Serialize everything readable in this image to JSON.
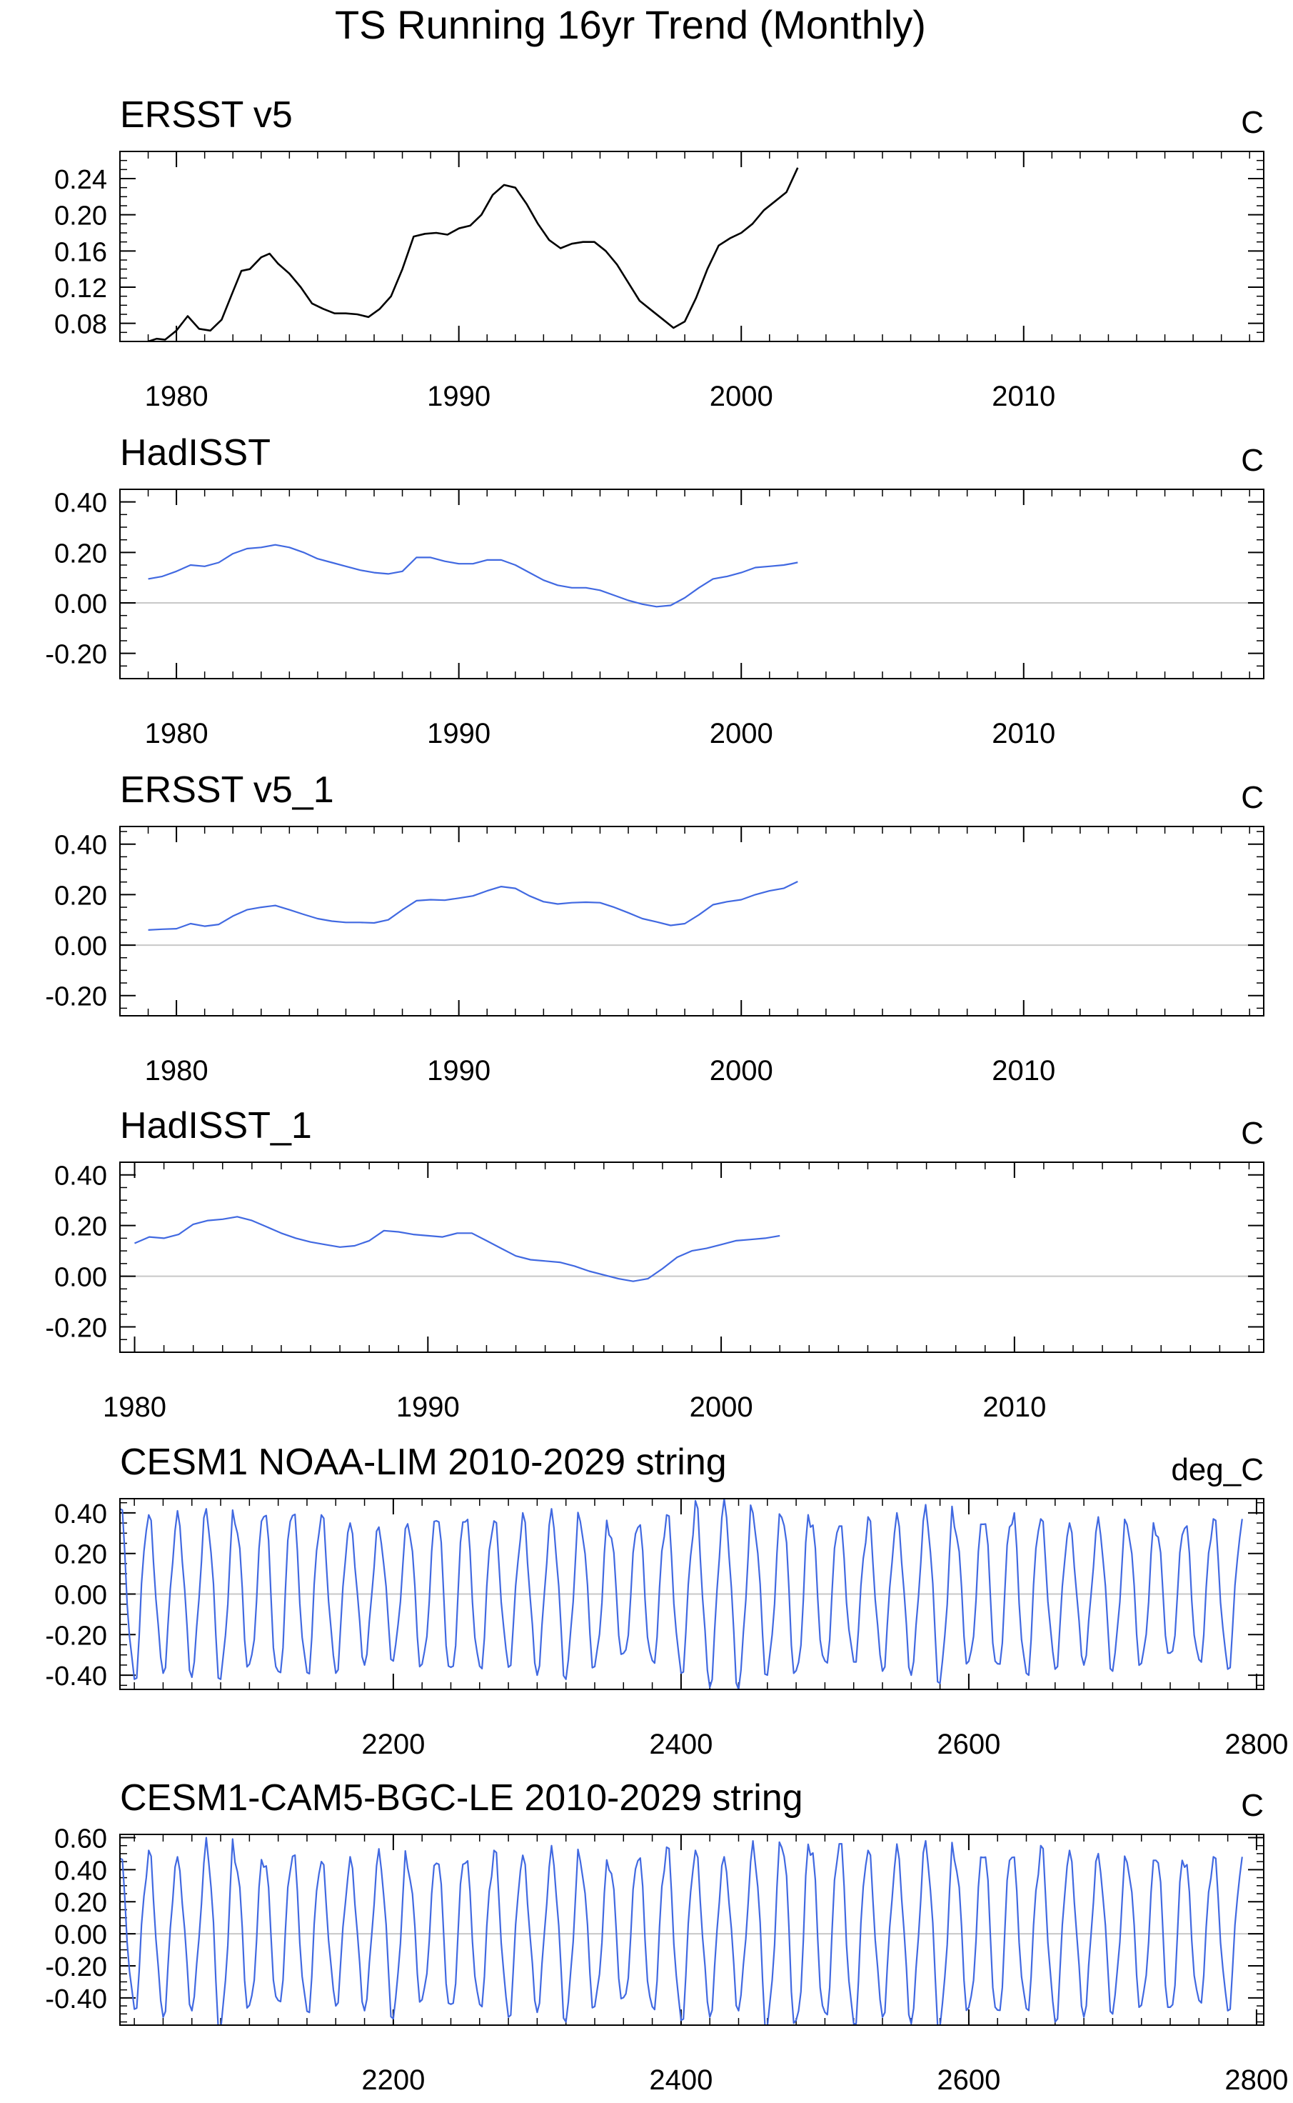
{
  "figure": {
    "title": "TS Running 16yr Trend (Monthly)"
  },
  "colors": {
    "primary_line": "#000000",
    "series_line": "#4169e1",
    "zero_line": "#c8c8c8",
    "frame": "#000000"
  },
  "chart_data": [
    {
      "type": "line",
      "title": "ERSST v5",
      "units": "C",
      "xlim": [
        1978.0,
        2018.5
      ],
      "ylim": [
        0.06,
        0.27
      ],
      "xticks": [
        1980,
        1990,
        2000,
        2010
      ],
      "yticks": [
        0.08,
        0.12,
        0.16,
        0.2,
        0.24
      ],
      "ytick_labels": [
        "0.08",
        "0.12",
        "0.16",
        "0.20",
        "0.24"
      ],
      "zero_line": false,
      "color": "black",
      "series": [
        {
          "x": [
            1979.0,
            1979.3,
            1979.6,
            1980.0,
            1980.4,
            1980.8,
            1981.2,
            1981.6,
            1982.0,
            1982.3,
            1982.6,
            1983.0,
            1983.3,
            1983.6,
            1984.0,
            1984.4,
            1984.8,
            1985.2,
            1985.6,
            1986.0,
            1986.4,
            1986.8,
            1987.2,
            1987.6,
            1988.0,
            1988.4,
            1988.8,
            1989.2,
            1989.6,
            1990.0,
            1990.4,
            1990.8,
            1991.2,
            1991.6,
            1992.0,
            1992.4,
            1992.8,
            1993.2,
            1993.6,
            1994.0,
            1994.4,
            1994.8,
            1995.2,
            1995.6,
            1996.0,
            1996.4,
            1996.8,
            1997.2,
            1997.6,
            1998.0,
            1998.4,
            1998.8,
            1999.2,
            1999.6,
            2000.0,
            2000.4,
            2000.8,
            2001.2,
            2001.6,
            2002.0
          ],
          "y": [
            0.06,
            0.063,
            0.062,
            0.072,
            0.088,
            0.074,
            0.072,
            0.084,
            0.115,
            0.138,
            0.14,
            0.153,
            0.157,
            0.146,
            0.135,
            0.12,
            0.102,
            0.096,
            0.091,
            0.091,
            0.09,
            0.087,
            0.096,
            0.11,
            0.14,
            0.176,
            0.179,
            0.18,
            0.178,
            0.185,
            0.188,
            0.2,
            0.222,
            0.233,
            0.23,
            0.212,
            0.19,
            0.172,
            0.163,
            0.168,
            0.17,
            0.17,
            0.16,
            0.145,
            0.125,
            0.105,
            0.095,
            0.085,
            0.075,
            0.082,
            0.108,
            0.14,
            0.166,
            0.174,
            0.18,
            0.19,
            0.205,
            0.215,
            0.225,
            0.252
          ]
        }
      ]
    },
    {
      "type": "line",
      "title": "HadISST",
      "units": "C",
      "xlim": [
        1978.0,
        2018.5
      ],
      "ylim": [
        -0.3,
        0.45
      ],
      "xticks": [
        1980,
        1990,
        2000,
        2010
      ],
      "yticks": [
        -0.2,
        0.0,
        0.2,
        0.4
      ],
      "ytick_labels": [
        "-0.20",
        "0.00",
        "0.20",
        "0.40"
      ],
      "zero_line": true,
      "color": "blue",
      "series": [
        {
          "x": [
            1979.0,
            1979.5,
            1980.0,
            1980.5,
            1981.0,
            1981.5,
            1982.0,
            1982.5,
            1983.0,
            1983.5,
            1984.0,
            1984.5,
            1985.0,
            1985.5,
            1986.0,
            1986.5,
            1987.0,
            1987.5,
            1988.0,
            1988.5,
            1989.0,
            1989.5,
            1990.0,
            1990.5,
            1991.0,
            1991.5,
            1992.0,
            1992.5,
            1993.0,
            1993.5,
            1994.0,
            1994.5,
            1995.0,
            1995.5,
            1996.0,
            1996.5,
            1997.0,
            1997.5,
            1998.0,
            1998.5,
            1999.0,
            1999.5,
            2000.0,
            2000.5,
            2001.0,
            2001.5,
            2002.0
          ],
          "y": [
            0.095,
            0.105,
            0.125,
            0.15,
            0.145,
            0.16,
            0.195,
            0.215,
            0.22,
            0.23,
            0.22,
            0.2,
            0.175,
            0.16,
            0.145,
            0.13,
            0.12,
            0.115,
            0.125,
            0.18,
            0.18,
            0.165,
            0.155,
            0.155,
            0.17,
            0.17,
            0.15,
            0.12,
            0.09,
            0.07,
            0.06,
            0.06,
            0.05,
            0.03,
            0.01,
            -0.005,
            -0.015,
            -0.01,
            0.02,
            0.06,
            0.095,
            0.105,
            0.12,
            0.14,
            0.145,
            0.15,
            0.16
          ]
        }
      ]
    },
    {
      "type": "line",
      "title": "ERSST v5_1",
      "units": "C",
      "xlim": [
        1978.0,
        2018.5
      ],
      "ylim": [
        -0.28,
        0.47
      ],
      "xticks": [
        1980,
        1990,
        2000,
        2010
      ],
      "yticks": [
        -0.2,
        0.0,
        0.2,
        0.4
      ],
      "ytick_labels": [
        "-0.20",
        "0.00",
        "0.20",
        "0.40"
      ],
      "zero_line": true,
      "color": "blue",
      "series": [
        {
          "x": [
            1979.0,
            1979.5,
            1980.0,
            1980.5,
            1981.0,
            1981.5,
            1982.0,
            1982.5,
            1983.0,
            1983.5,
            1984.0,
            1984.5,
            1985.0,
            1985.5,
            1986.0,
            1986.5,
            1987.0,
            1987.5,
            1988.0,
            1988.5,
            1989.0,
            1989.5,
            1990.0,
            1990.5,
            1991.0,
            1991.5,
            1992.0,
            1992.5,
            1993.0,
            1993.5,
            1994.0,
            1994.5,
            1995.0,
            1995.5,
            1996.0,
            1996.5,
            1997.0,
            1997.5,
            1998.0,
            1998.5,
            1999.0,
            1999.5,
            2000.0,
            2000.5,
            2001.0,
            2001.5,
            2002.0
          ],
          "y": [
            0.06,
            0.063,
            0.065,
            0.085,
            0.075,
            0.082,
            0.115,
            0.14,
            0.15,
            0.157,
            0.14,
            0.122,
            0.105,
            0.095,
            0.09,
            0.09,
            0.088,
            0.1,
            0.14,
            0.176,
            0.18,
            0.178,
            0.186,
            0.195,
            0.215,
            0.232,
            0.225,
            0.195,
            0.172,
            0.163,
            0.168,
            0.17,
            0.168,
            0.15,
            0.128,
            0.105,
            0.092,
            0.078,
            0.085,
            0.12,
            0.16,
            0.172,
            0.18,
            0.2,
            0.215,
            0.225,
            0.252
          ]
        }
      ]
    },
    {
      "type": "line",
      "title": "HadISST_1",
      "units": "C",
      "xlim": [
        1979.5,
        2018.5
      ],
      "ylim": [
        -0.3,
        0.45
      ],
      "xticks": [
        1980,
        1990,
        2000,
        2010
      ],
      "yticks": [
        -0.2,
        0.0,
        0.2,
        0.4
      ],
      "ytick_labels": [
        "-0.20",
        "0.00",
        "0.20",
        "0.40"
      ],
      "zero_line": true,
      "color": "blue",
      "series": [
        {
          "x": [
            1980.0,
            1980.5,
            1981.0,
            1981.5,
            1982.0,
            1982.5,
            1983.0,
            1983.5,
            1984.0,
            1984.5,
            1985.0,
            1985.5,
            1986.0,
            1986.5,
            1987.0,
            1987.5,
            1988.0,
            1988.5,
            1989.0,
            1989.5,
            1990.0,
            1990.5,
            1991.0,
            1991.5,
            1992.0,
            1992.5,
            1993.0,
            1993.5,
            1994.0,
            1994.5,
            1995.0,
            1995.5,
            1996.0,
            1996.5,
            1997.0,
            1997.5,
            1998.0,
            1998.5,
            1999.0,
            1999.5,
            2000.0,
            2000.5,
            2001.0,
            2001.5,
            2002.0
          ],
          "y": [
            0.13,
            0.155,
            0.15,
            0.165,
            0.205,
            0.22,
            0.225,
            0.235,
            0.22,
            0.195,
            0.17,
            0.15,
            0.135,
            0.125,
            0.115,
            0.12,
            0.14,
            0.18,
            0.175,
            0.165,
            0.16,
            0.155,
            0.17,
            0.17,
            0.14,
            0.11,
            0.08,
            0.065,
            0.06,
            0.055,
            0.04,
            0.02,
            0.005,
            -0.01,
            -0.02,
            -0.01,
            0.03,
            0.075,
            0.1,
            0.11,
            0.125,
            0.14,
            0.145,
            0.15,
            0.16
          ]
        }
      ]
    },
    {
      "type": "line",
      "title": "CESM1 NOAA-LIM 2010-2029 string",
      "units": "deg_C",
      "xlim": [
        2010,
        2805
      ],
      "ylim": [
        -0.47,
        0.47
      ],
      "xticks": [
        2200,
        2400,
        2600,
        2800
      ],
      "yticks": [
        -0.4,
        -0.2,
        0.0,
        0.2,
        0.4
      ],
      "ytick_labels": [
        "-0.40",
        "-0.20",
        "0.00",
        "0.20",
        "0.40"
      ],
      "zero_line": true,
      "color": "blue",
      "series": [
        {
          "x_start": 2010,
          "x_end": 2790,
          "cycles": 39,
          "trough_phase": 0.4,
          "amplitudes": [
            0.42,
            0.39,
            0.41,
            0.42,
            0.38,
            0.43,
            0.4,
            0.39,
            0.35,
            0.33,
            0.37,
            0.41,
            0.38,
            0.36,
            0.4,
            0.42,
            0.37,
            0.33,
            0.36,
            0.39,
            0.46,
            0.47,
            0.4,
            0.42,
            0.37,
            0.34,
            0.38,
            0.4,
            0.44,
            0.36,
            0.39,
            0.41,
            0.37,
            0.35,
            0.38,
            0.36,
            0.33,
            0.35,
            0.37
          ]
        }
      ]
    },
    {
      "type": "line",
      "title": "CESM1-CAM5-BGC-LE 2010-2029 string",
      "units": "C",
      "xlim": [
        2010,
        2805
      ],
      "ylim": [
        -0.57,
        0.62
      ],
      "xticks": [
        2200,
        2400,
        2600,
        2800
      ],
      "yticks": [
        -0.4,
        -0.2,
        0.0,
        0.2,
        0.4,
        0.6
      ],
      "ytick_labels": [
        "-0.40",
        "-0.20",
        "0.00",
        "0.20",
        "0.40",
        "0.60"
      ],
      "zero_line": true,
      "color": "blue",
      "series": [
        {
          "x_start": 2010,
          "x_end": 2790,
          "cycles": 39,
          "trough_phase": 0.4,
          "amplitudes": [
            0.47,
            0.52,
            0.48,
            0.6,
            0.49,
            0.47,
            0.5,
            0.45,
            0.48,
            0.53,
            0.44,
            0.5,
            0.47,
            0.52,
            0.49,
            0.55,
            0.47,
            0.45,
            0.5,
            0.54,
            0.52,
            0.48,
            0.58,
            0.6,
            0.55,
            0.57,
            0.52,
            0.56,
            0.58,
            0.5,
            0.54,
            0.49,
            0.55,
            0.52,
            0.5,
            0.47,
            0.52,
            0.45,
            0.48
          ]
        }
      ]
    }
  ]
}
